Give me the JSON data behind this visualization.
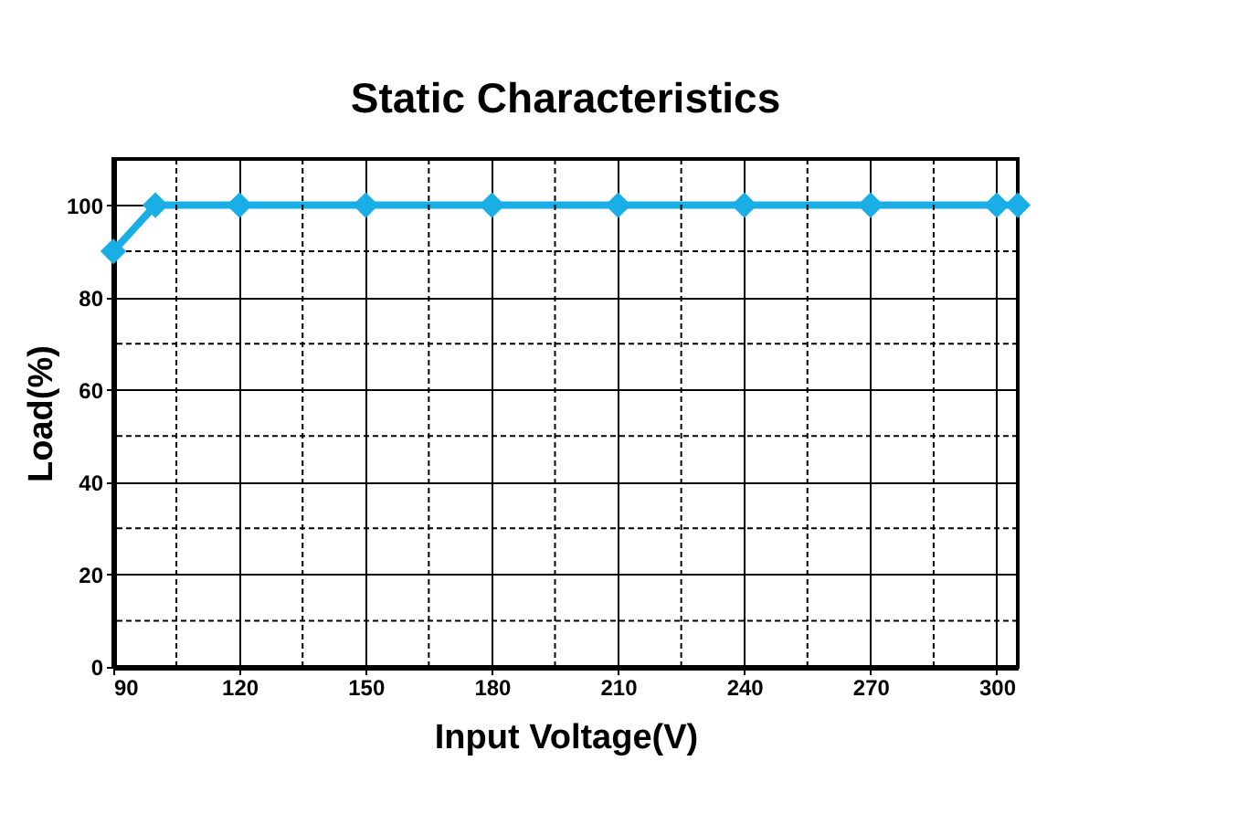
{
  "chart_data": {
    "type": "line",
    "title": "Static Characteristics",
    "xlabel": "Input Voltage(V)",
    "ylabel": "Load(%)",
    "x": [
      90,
      100,
      120,
      150,
      180,
      210,
      240,
      270,
      300,
      305
    ],
    "series": [
      {
        "color": "#1aaee6",
        "values": [
          90,
          100,
          100,
          100,
          100,
          100,
          100,
          100,
          100,
          100
        ]
      }
    ],
    "xlim": [
      90,
      305
    ],
    "xticks": [
      90,
      {
        "value": 105,
        "label": null
      },
      120,
      {
        "value": 135,
        "label": null
      },
      150,
      {
        "value": 165,
        "label": null
      },
      180,
      {
        "value": 195,
        "label": null
      },
      210,
      {
        "value": 225,
        "label": null
      },
      240,
      {
        "value": 255,
        "label": null
      },
      270,
      {
        "value": 285,
        "label": null
      },
      300
    ],
    "ylim": [
      0,
      110
    ],
    "yticks": [
      0,
      {
        "value": 10,
        "label": null
      },
      20,
      {
        "value": 30,
        "label": null
      },
      40,
      {
        "value": 50,
        "label": null
      },
      60,
      {
        "value": 70,
        "label": null
      },
      80,
      {
        "value": 90,
        "label": null
      },
      100
    ],
    "grid": true,
    "marker": "diamond",
    "line_style": "solid"
  }
}
